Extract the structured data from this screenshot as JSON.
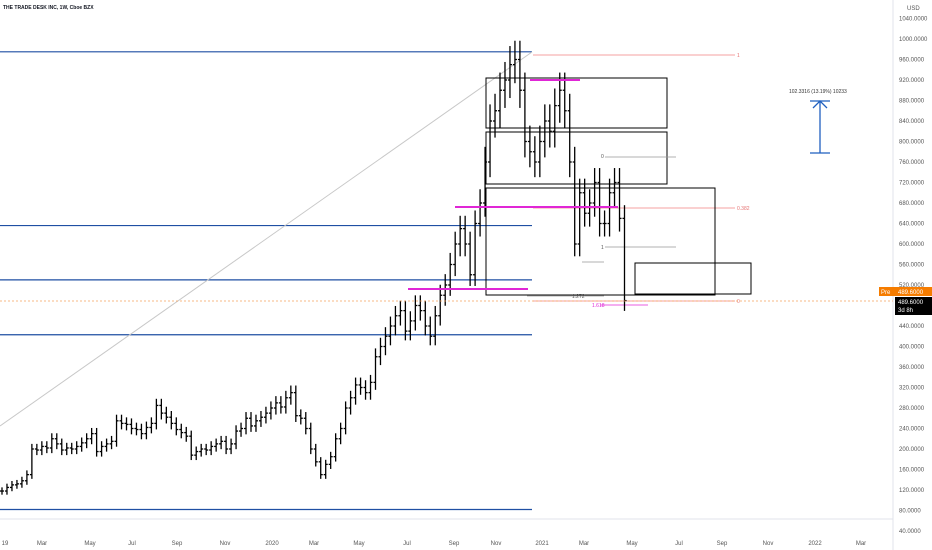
{
  "header": {
    "symbol_title": "THE TRADE DESK INC, 1W, Cboe BZX"
  },
  "colors": {
    "background": "#ffffff",
    "bar": "#000000",
    "hline": "#1f4fa3",
    "magenta": "#e026d6",
    "fib_red": "#f08080",
    "trend": "#c8c8c8",
    "pre_badge": "#f57c00",
    "last_badge": "#000000"
  },
  "price_axis": {
    "currency": "USD",
    "ticks": [
      "1040.0000",
      "1000.0000",
      "960.0000",
      "920.0000",
      "880.0000",
      "840.0000",
      "800.0000",
      "760.0000",
      "720.0000",
      "680.0000",
      "640.0000",
      "600.0000",
      "560.0000",
      "520.0000",
      "480.0000",
      "440.0000",
      "400.0000",
      "360.0000",
      "320.0000",
      "280.0000",
      "240.0000",
      "200.0000",
      "160.0000",
      "120.0000",
      "80.0000",
      "40.0000"
    ],
    "pre_label": "Pre",
    "pre_value": "489.6000",
    "last_value": "489.6000",
    "countdown": "3d 8h"
  },
  "time_axis": {
    "labels": [
      "19",
      "Mar",
      "May",
      "Jul",
      "Sep",
      "Nov",
      "2020",
      "Mar",
      "May",
      "Jul",
      "Sep",
      "Nov",
      "2021",
      "Mar",
      "May",
      "Jul",
      "Sep",
      "Nov",
      "2022",
      "Mar"
    ]
  },
  "annotations": {
    "measure_label": "102.3316 (13.19%) 10233",
    "fib_top": "1",
    "fib_mid": "0.382",
    "fib_zero": "0",
    "fib_small_0": "0",
    "fib_small_1": "1",
    "fib_ext_1": "1.272",
    "fib_ext_2": "1.618"
  },
  "chart_data": {
    "type": "ohlc",
    "title": "THE TRADE DESK INC, 1W, Cboe BZX",
    "interval": "1W",
    "ylim": [
      40,
      1060
    ],
    "horizontal_levels": [
      975,
      636,
      530,
      423,
      82
    ],
    "series": [
      {
        "name": "TTD",
        "start": "2019-01",
        "closes": [
          118,
          125,
          130,
          132,
          138,
          150,
          200,
          198,
          205,
          202,
          220,
          210,
          198,
          202,
          200,
          205,
          212,
          220,
          230,
          195,
          205,
          210,
          215,
          255,
          250,
          248,
          240,
          238,
          230,
          242,
          250,
          285,
          270,
          262,
          250,
          238,
          232,
          225,
          188,
          195,
          200,
          198,
          205,
          210,
          215,
          200,
          210,
          235,
          240,
          260,
          245,
          255,
          262,
          270,
          280,
          290,
          282,
          300,
          310,
          265,
          260,
          240,
          200,
          175,
          150,
          170,
          185,
          220,
          240,
          280,
          300,
          325,
          320,
          310,
          330,
          380,
          400,
          420,
          440,
          460,
          470,
          430,
          450,
          480,
          470,
          440,
          420,
          460,
          500,
          520,
          560,
          600,
          630,
          600,
          540,
          640,
          680,
          760,
          840,
          860,
          900,
          920,
          950,
          960,
          900,
          800,
          780,
          760,
          800,
          840,
          820,
          870,
          900,
          860,
          760,
          600,
          700,
          660,
          680,
          720,
          640,
          640,
          700,
          720,
          650,
          489.6
        ]
      }
    ]
  }
}
